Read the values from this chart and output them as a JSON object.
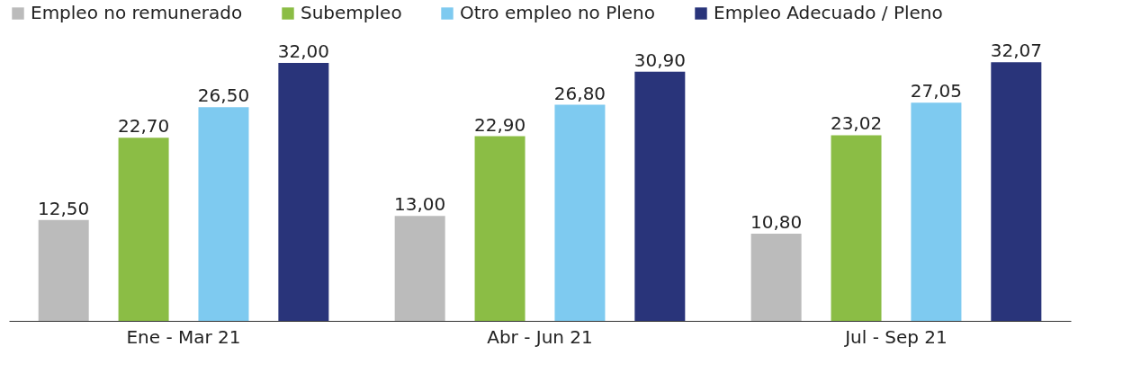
{
  "chart_data": {
    "type": "bar",
    "categories": [
      "Ene - Mar 21",
      "Abr - Jun 21",
      "Jul - Sep  21"
    ],
    "series": [
      {
        "name": "Empleo no remunerado",
        "color": "#bbbbbb",
        "values": [
          12.5,
          13.0,
          10.8
        ],
        "value_labels": [
          "12,50",
          "13,00",
          "10,80"
        ]
      },
      {
        "name": "Subempleo",
        "color": "#8bbd45",
        "values": [
          22.7,
          22.9,
          23.02
        ],
        "value_labels": [
          "22,70",
          "22,90",
          "23,02"
        ]
      },
      {
        "name": "Otro empleo no Pleno",
        "color": "#7ecaf0",
        "values": [
          26.5,
          26.8,
          27.05
        ],
        "value_labels": [
          "26,50",
          "26,80",
          "27,05"
        ]
      },
      {
        "name": "Empleo Adecuado / Pleno",
        "color": "#29347a",
        "values": [
          32.0,
          30.9,
          32.07
        ],
        "value_labels": [
          "32,00",
          "30,90",
          "32,07"
        ]
      }
    ],
    "legend": "top",
    "grid": false
  }
}
